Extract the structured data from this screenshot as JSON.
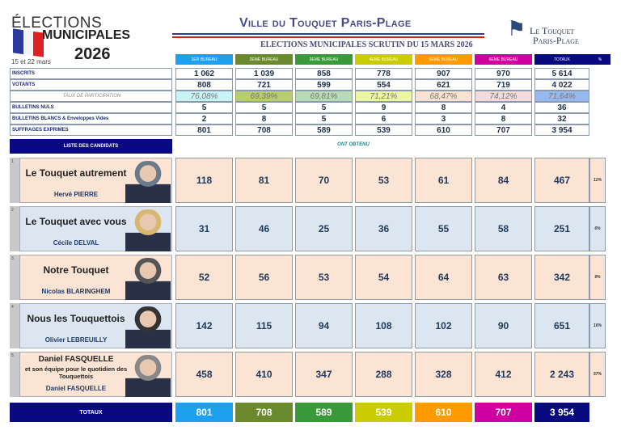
{
  "logo": {
    "line1": "ÉLECTIONS",
    "line2": "MUNICIPALES",
    "year": "2026",
    "dates": "15 et 22 mars"
  },
  "header": {
    "title": "Ville du Touquet Paris-Plage",
    "subtitle": "ELECTIONS MUNICIPALES SCRUTIN DU 15 MARS 2026",
    "brand1": "Le Touquet",
    "brand2": "Paris-Plage"
  },
  "columns": [
    {
      "label": "1ER BUREAU",
      "color": "#1ea0f0",
      "taux_bg": "#c8f4f8"
    },
    {
      "label": "2EME BUREAU",
      "color": "#6b8a2e",
      "taux_bg": "#b8cc70"
    },
    {
      "label": "3EME BUREAU",
      "color": "#3a9a3a",
      "taux_bg": "#b8dcb8"
    },
    {
      "label": "4EME BUREAU",
      "color": "#c8cc00",
      "taux_bg": "#ecf6a4"
    },
    {
      "label": "5EME BUREAU",
      "color": "#ff9a00",
      "taux_bg": "#fce2d0"
    },
    {
      "label": "6EME BUREAU",
      "color": "#d000a0",
      "taux_bg": "#f4dada"
    },
    {
      "label": "TOTAUX",
      "color": "#0a0a80",
      "taux_bg": "#98b8f0"
    }
  ],
  "pct_header": "%",
  "stats": [
    {
      "label": "INSCRITS",
      "values": [
        "1 062",
        "1 039",
        "858",
        "778",
        "907",
        "970",
        "5 614"
      ]
    },
    {
      "label": "VOTANTS",
      "values": [
        "808",
        "721",
        "599",
        "554",
        "621",
        "719",
        "4 022"
      ]
    },
    {
      "label": "TAUX DE PARTICIPATION",
      "values": [
        "76,08%",
        "69,39%",
        "69,81%",
        "71,21%",
        "68,47%",
        "74,12%",
        "71,64%"
      ],
      "taux": true
    },
    {
      "label": "BULLETINS NULS",
      "values": [
        "5",
        "5",
        "5",
        "9",
        "8",
        "4",
        "36"
      ]
    },
    {
      "label": "BULLETINS BLANCS & Enveloppes Vides",
      "values": [
        "2",
        "8",
        "5",
        "6",
        "3",
        "8",
        "32"
      ]
    },
    {
      "label": "SUFFRAGES EXPRIMES",
      "values": [
        "801",
        "708",
        "589",
        "539",
        "610",
        "707",
        "3 954"
      ]
    }
  ],
  "list_header": "LISTE DES CANDIDATS",
  "ont_obtenu": "ONT OBTENU",
  "candidates": [
    {
      "num": "1",
      "list": "Le Touquet autrement",
      "head": "Hervé PIERRE",
      "values": [
        "118",
        "81",
        "70",
        "53",
        "61",
        "84",
        "467"
      ],
      "pct": "12%",
      "bg": "#fce4d4"
    },
    {
      "num": "2",
      "list": "Le Touquet avec vous",
      "head": "Cécile DELVAL",
      "values": [
        "31",
        "46",
        "25",
        "36",
        "55",
        "58",
        "251"
      ],
      "pct": "6%",
      "bg": "#dce6f0"
    },
    {
      "num": "3",
      "list": "Notre Touquet",
      "head": "Nicolas BLARINGHEM",
      "values": [
        "52",
        "56",
        "53",
        "54",
        "64",
        "63",
        "342"
      ],
      "pct": "9%",
      "bg": "#fce4d4"
    },
    {
      "num": "4",
      "list": "Nous les Touquettois",
      "head": "Olivier LEBREUILLY",
      "values": [
        "142",
        "115",
        "94",
        "108",
        "102",
        "90",
        "651"
      ],
      "pct": "16%",
      "bg": "#dce6f0"
    },
    {
      "num": "5",
      "list": "Daniel FASQUELLE",
      "list2": "et son équipe pour le quotidien des Touquettois",
      "head": "Daniel FASQUELLE",
      "values": [
        "458",
        "410",
        "347",
        "288",
        "328",
        "412",
        "2 243"
      ],
      "pct": "57%",
      "bg": "#fce4d4"
    }
  ],
  "totals": {
    "label": "TOTAUX",
    "values": [
      "801",
      "708",
      "589",
      "539",
      "610",
      "707",
      "3 954"
    ]
  }
}
